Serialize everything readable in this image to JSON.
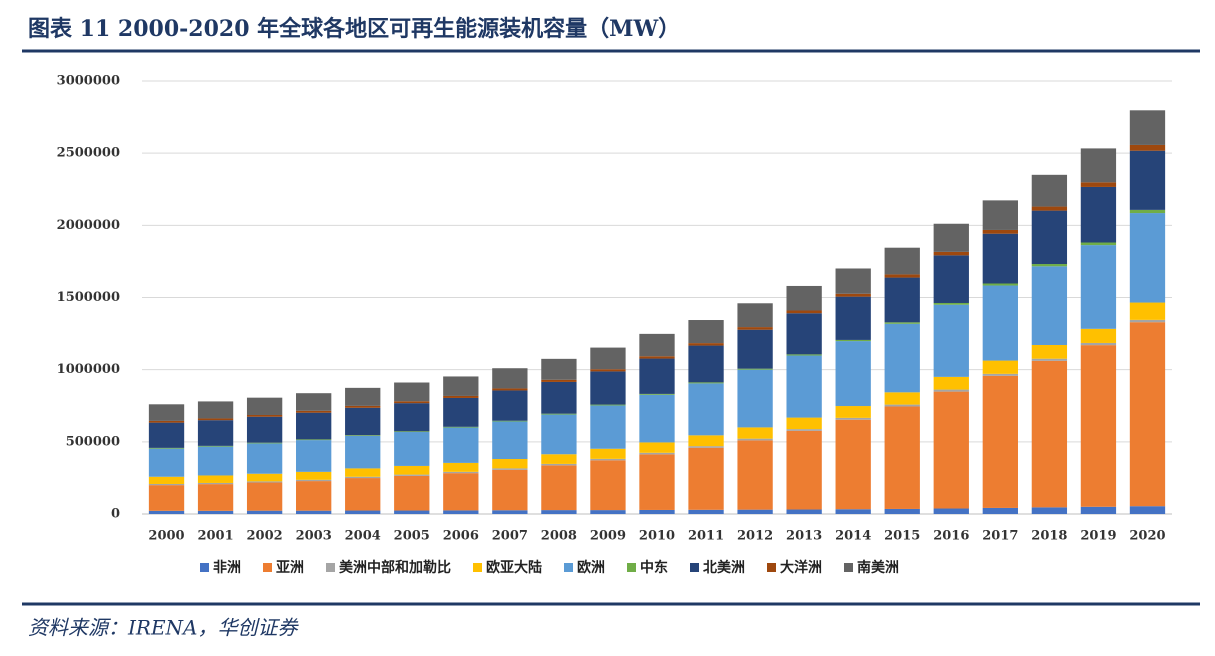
{
  "chart_data": {
    "type": "bar",
    "stacked": true,
    "title": "图表 11   2000-2020 年全球各地区可再生能源装机容量（MW）",
    "source": "资料来源：IRENA，华创证券",
    "categories": [
      "2000",
      "2001",
      "2002",
      "2003",
      "2004",
      "2005",
      "2006",
      "2007",
      "2008",
      "2009",
      "2010",
      "2011",
      "2012",
      "2013",
      "2014",
      "2015",
      "2016",
      "2017",
      "2018",
      "2019",
      "2020"
    ],
    "ylim": [
      0,
      3000000
    ],
    "yticks": [
      0,
      500000,
      1000000,
      1500000,
      2000000,
      2500000,
      3000000
    ],
    "grid": true,
    "series": [
      {
        "name": "非洲",
        "color": "#4472c4",
        "values": [
          22000,
          22000,
          23000,
          23000,
          24000,
          24000,
          25000,
          26000,
          27000,
          27000,
          28000,
          29000,
          30000,
          31000,
          33000,
          35000,
          38000,
          42000,
          46000,
          50000,
          54000
        ]
      },
      {
        "name": "亚洲",
        "color": "#ed7d31",
        "values": [
          178000,
          185000,
          195000,
          205000,
          225000,
          240000,
          258000,
          280000,
          310000,
          345000,
          385000,
          430000,
          480000,
          545000,
          620000,
          710000,
          810000,
          915000,
          1015000,
          1120000,
          1275000
        ]
      },
      {
        "name": "美洲中部和加勒比",
        "color": "#a5a5a5",
        "values": [
          8000,
          8000,
          8000,
          9000,
          9000,
          9000,
          9000,
          10000,
          10000,
          10000,
          11000,
          11000,
          12000,
          12000,
          13000,
          13000,
          14000,
          14000,
          15000,
          15000,
          16000
        ]
      },
      {
        "name": "欧亚大陆",
        "color": "#ffc000",
        "values": [
          50000,
          52000,
          53000,
          55000,
          58000,
          60000,
          62000,
          65000,
          67000,
          70000,
          72000,
          75000,
          78000,
          80000,
          82000,
          85000,
          88000,
          92000,
          95000,
          98000,
          120000
        ]
      },
      {
        "name": "欧洲",
        "color": "#5b9bd5",
        "values": [
          195000,
          200000,
          210000,
          220000,
          225000,
          235000,
          245000,
          260000,
          275000,
          300000,
          330000,
          360000,
          400000,
          430000,
          450000,
          475000,
          500000,
          520000,
          545000,
          580000,
          620000
        ]
      },
      {
        "name": "中东",
        "color": "#70ad47",
        "values": [
          5000,
          5000,
          5000,
          5000,
          5000,
          5000,
          5000,
          5000,
          6000,
          6000,
          6000,
          7000,
          7000,
          8000,
          8000,
          10000,
          12000,
          14000,
          16000,
          18000,
          22000
        ]
      },
      {
        "name": "北美洲",
        "color": "#264478",
        "values": [
          175000,
          178000,
          180000,
          185000,
          190000,
          195000,
          200000,
          210000,
          220000,
          230000,
          245000,
          255000,
          270000,
          285000,
          300000,
          310000,
          330000,
          345000,
          370000,
          385000,
          410000
        ]
      },
      {
        "name": "大洋洲",
        "color": "#9e480e",
        "values": [
          12000,
          12000,
          12000,
          13000,
          13000,
          13000,
          14000,
          14000,
          15000,
          15000,
          16000,
          17000,
          18000,
          19000,
          20000,
          22000,
          24000,
          26000,
          28000,
          32000,
          40000
        ]
      },
      {
        "name": "南美洲",
        "color": "#636363",
        "values": [
          115000,
          118000,
          120000,
          122000,
          125000,
          130000,
          135000,
          140000,
          145000,
          150000,
          155000,
          160000,
          165000,
          170000,
          175000,
          185000,
          195000,
          205000,
          220000,
          235000,
          240000
        ]
      }
    ]
  }
}
